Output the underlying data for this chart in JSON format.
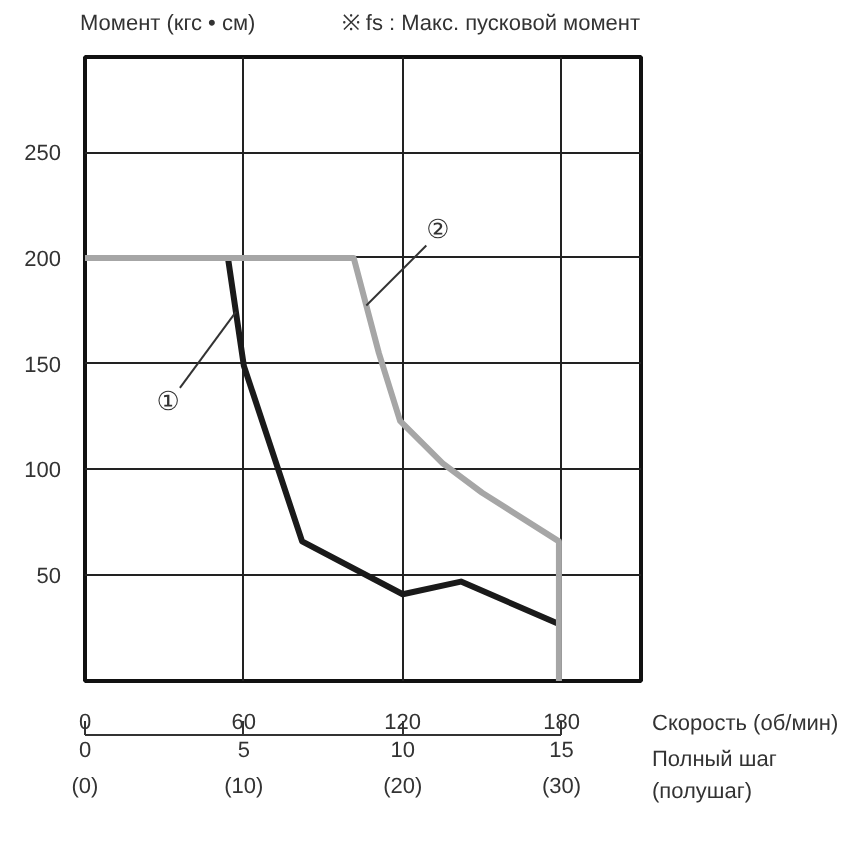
{
  "chart_data": {
    "type": "line",
    "ylabel": "Момент (кгс • см)",
    "xlabel": "Скорость (об/мин)",
    "x2label": "Полный шаг\n(полушаг)",
    "annotations": [
      "※ fs : Макс. пусковой момент",
      "(0)",
      "(10)",
      "(20)",
      "(30)"
    ],
    "xlim": [
      0,
      210
    ],
    "xticks": [
      0,
      60,
      120,
      180
    ],
    "x2lim": [
      0,
      17.5
    ],
    "x2ticks": [
      0,
      5,
      10,
      15
    ],
    "ylim": [
      0,
      295
    ],
    "yticks": [
      50,
      100,
      150,
      200,
      250
    ],
    "grid": true,
    "legend": false,
    "marker": "none",
    "line_style": "solid",
    "series": [
      {
        "name": "①",
        "color": "#1a1a1a",
        "x": [
          0,
          54,
          60,
          82,
          120,
          142,
          179
        ],
        "values": [
          200,
          200,
          149,
          66,
          41,
          47,
          27
        ]
      },
      {
        "name": "②",
        "color": "#a6a6a6",
        "x": [
          0,
          101.5,
          111,
          119,
          135,
          150,
          179,
          179
        ],
        "values": [
          200,
          200,
          155,
          123,
          103,
          89,
          66,
          0
        ]
      }
    ]
  }
}
